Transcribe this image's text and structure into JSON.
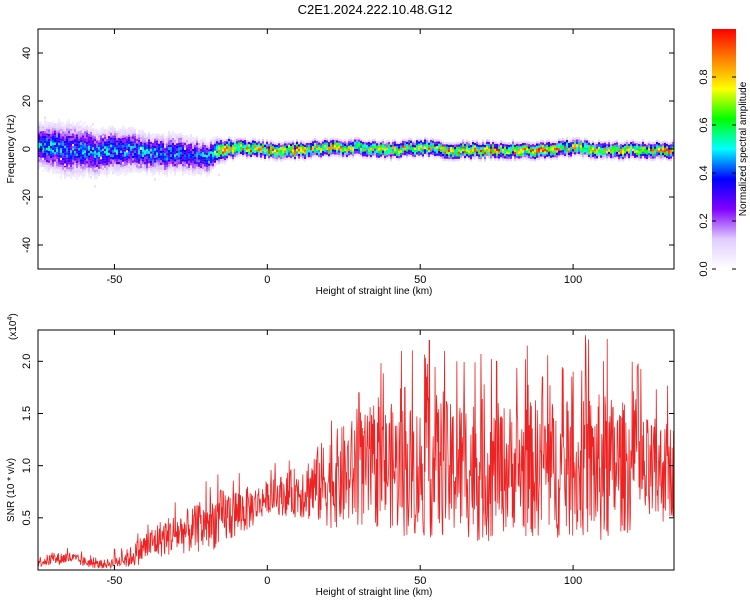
{
  "title": "C2E1.2024.222.10.48.G12",
  "chart_data": [
    {
      "type": "heatmap",
      "xlabel": "Height of straight line (km)",
      "ylabel": "Frequency (Hz)",
      "xlim": [
        -75,
        133
      ],
      "ylim": [
        -50,
        50
      ],
      "xticks": [
        -50,
        0,
        50,
        100
      ],
      "yticks": [
        40,
        20,
        0,
        -20,
        -40
      ],
      "colorbar": {
        "label": "Normalized spectral amplitude",
        "range": [
          0,
          1
        ],
        "ticks": [
          "0.0",
          "0.2",
          "0.4",
          "0.6",
          "0.8"
        ],
        "tick_values": [
          0,
          0.2,
          0.4,
          0.6,
          0.8
        ],
        "colormap": [
          "#ffffff",
          "#e0ccff",
          "#8000ff",
          "#0000ff",
          "#00ffff",
          "#00ff00",
          "#ffff00",
          "#ff8000",
          "#ff0000"
        ]
      },
      "ridge": {
        "description_free": true,
        "x": [
          -75,
          -70,
          -65,
          -60,
          -55,
          -50,
          -45,
          -40,
          -35,
          -30,
          -25,
          -20,
          -15,
          -10,
          0,
          10,
          20,
          30,
          40,
          50,
          60,
          70,
          80,
          90,
          100,
          110,
          120,
          133
        ],
        "center_freq": [
          2,
          1,
          0,
          0,
          -1,
          0,
          0,
          -1,
          -2,
          -1,
          -2,
          -3,
          0,
          1,
          0,
          0,
          1,
          1,
          0,
          1,
          0,
          0,
          0,
          0,
          1,
          0,
          0,
          0
        ],
        "spread": [
          8,
          9,
          10,
          9,
          8,
          8,
          8,
          7,
          7,
          7,
          7,
          6,
          4,
          3,
          3,
          3,
          3,
          3,
          3,
          3,
          3,
          3,
          3,
          3,
          3,
          3,
          3,
          3
        ],
        "peak_amplitude": [
          0.5,
          0.5,
          0.45,
          0.5,
          0.5,
          0.5,
          0.45,
          0.5,
          0.45,
          0.45,
          0.4,
          0.5,
          0.9,
          0.9,
          0.9,
          0.9,
          0.85,
          0.8,
          0.85,
          0.85,
          0.9,
          0.9,
          0.9,
          0.9,
          0.85,
          0.8,
          0.85,
          0.9
        ]
      }
    },
    {
      "type": "line",
      "xlabel": "Height of straight line (km)",
      "ylabel": "SNR (10 * v/v)",
      "scale_label": "(x10",
      "scale_exp": "4",
      "scale_close": ")",
      "xlim": [
        -75,
        133
      ],
      "ylim": [
        0,
        2.3
      ],
      "xticks": [
        -50,
        0,
        50,
        100
      ],
      "yticks": [
        0.5,
        1.0,
        1.5,
        2.0
      ],
      "ytick_labels": [
        "0.5",
        "1.0",
        "1.5",
        "2.0"
      ],
      "series": [
        {
          "color": "#ee2222",
          "x": [
            -75,
            -70,
            -65,
            -60,
            -55,
            -50,
            -45,
            -40,
            -35,
            -30,
            -25,
            -20,
            -15,
            -10,
            -5,
            0,
            5,
            10,
            15,
            20,
            25,
            30,
            35,
            40,
            45,
            50,
            55,
            60,
            65,
            70,
            75,
            80,
            85,
            90,
            95,
            100,
            105,
            110,
            115,
            120,
            125,
            130,
            133
          ],
          "mean": [
            0.08,
            0.1,
            0.12,
            0.08,
            0.05,
            0.07,
            0.12,
            0.22,
            0.3,
            0.35,
            0.38,
            0.42,
            0.5,
            0.55,
            0.6,
            0.7,
            0.72,
            0.75,
            0.8,
            0.85,
            0.9,
            0.95,
            0.95,
            1.0,
            0.95,
            0.95,
            1.0,
            0.95,
            1.0,
            0.95,
            0.95,
            1.0,
            0.95,
            1.0,
            0.95,
            0.9,
            1.0,
            0.95,
            1.0,
            0.95,
            0.9,
            0.95,
            0.95
          ],
          "amplitude": [
            0.05,
            0.06,
            0.06,
            0.05,
            0.04,
            0.05,
            0.1,
            0.15,
            0.18,
            0.2,
            0.22,
            0.25,
            0.28,
            0.25,
            0.2,
            0.15,
            0.2,
            0.25,
            0.35,
            0.45,
            0.5,
            0.55,
            0.55,
            0.6,
            0.65,
            0.65,
            0.7,
            0.65,
            0.7,
            0.7,
            0.65,
            0.6,
            0.65,
            0.7,
            0.65,
            0.6,
            0.7,
            0.75,
            0.65,
            0.6,
            0.55,
            0.5,
            0.45
          ],
          "peaks": [
            [
              -50,
              0.2
            ],
            [
              -20,
              0.85
            ],
            [
              30,
              1.7
            ],
            [
              45,
              1.75
            ],
            [
              53,
              2.2
            ],
            [
              58,
              2.1
            ],
            [
              62,
              2.0
            ],
            [
              75,
              2.0
            ],
            [
              85,
              2.15
            ],
            [
              90,
              1.85
            ],
            [
              100,
              1.9
            ],
            [
              104,
              2.25
            ],
            [
              110,
              2.0
            ],
            [
              121,
              1.95
            ],
            [
              130,
              1.35
            ]
          ]
        }
      ]
    }
  ]
}
